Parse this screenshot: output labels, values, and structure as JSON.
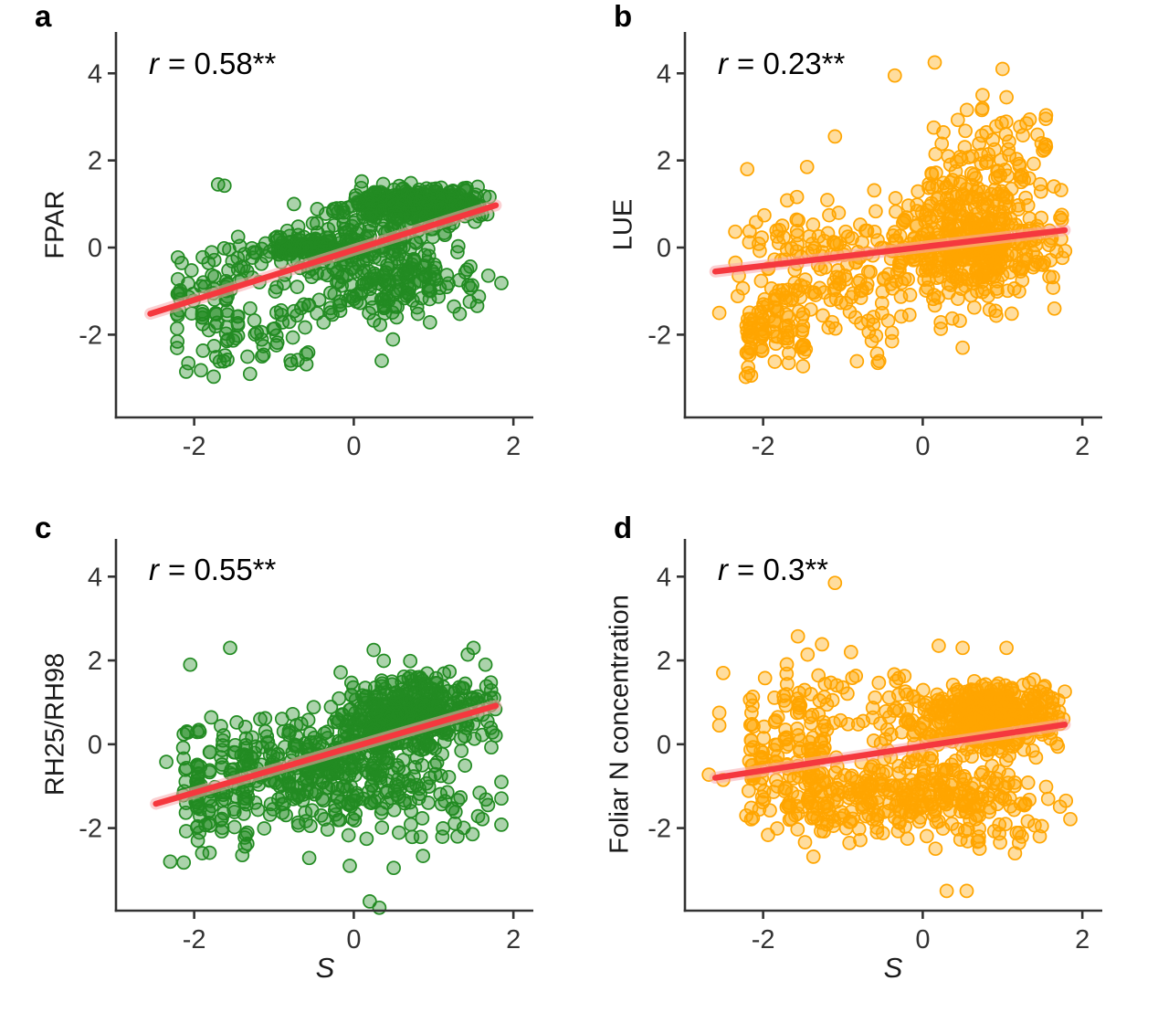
{
  "figure": {
    "background": "#ffffff",
    "axis_color": "#333333",
    "tick_label_color": "#333333",
    "regression_line_color": "#f5383e",
    "regression_band_color": "#f7a8ab",
    "green_point_color": "#228b22",
    "orange_point_color": "#ffa500"
  },
  "axes": {
    "x_label": "S",
    "x_ticks": [
      "-2",
      "0",
      "2"
    ],
    "x_tick_values": [
      -2,
      0,
      2
    ],
    "y_ticks": [
      "-2",
      "0",
      "2",
      "4"
    ],
    "y_tick_values": [
      -2,
      0,
      2,
      4
    ]
  },
  "chart_data": [
    {
      "panel": "a",
      "type": "scatter",
      "ylabel": "FPAR",
      "r_symbol": "r",
      "r_rest": "= 0.58**",
      "r_value": 0.58,
      "significance": "**",
      "point_color": "#228b22",
      "seed": 101,
      "n_points": 878,
      "xlim": [
        -2.98,
        2.25
      ],
      "ylim": [
        -3.9,
        4.95
      ],
      "regression_line": {
        "x1": -2.55,
        "y1": -1.52,
        "x2": 1.78,
        "y2": 0.97
      },
      "clusters": [
        {
          "n": 300,
          "cx": 0.85,
          "cy": 1.02,
          "sx": 0.4,
          "sy": 0.2,
          "clipx": [
            -0.3,
            1.78
          ],
          "clipy": [
            0.45,
            1.6
          ]
        },
        {
          "n": 90,
          "cx": 0.35,
          "cy": 0.55,
          "sx": 0.5,
          "sy": 0.35,
          "clipx": [
            -0.9,
            1.6
          ]
        },
        {
          "n": 120,
          "cx": -0.55,
          "cy": 0.0,
          "sx": 0.4,
          "sy": 0.14,
          "clipx": [
            -1.45,
            0.4
          ]
        },
        {
          "n": 200,
          "cx": 0.45,
          "cy": -0.7,
          "sx": 0.5,
          "sy": 0.55,
          "clipy": [
            -2.2,
            0.2
          ]
        },
        {
          "n": 80,
          "cx": -1.85,
          "cy": -1.2,
          "sx": 0.3,
          "sy": 0.85,
          "clipx": [
            -2.6,
            -1.35
          ],
          "clipy": [
            -3.0,
            0.3
          ],
          "columns": [
            -2.2,
            -2.05,
            -1.9,
            -1.75,
            -1.6,
            -1.45
          ]
        },
        {
          "n": 50,
          "cx": -1.0,
          "cy": -1.5,
          "sx": 0.45,
          "sy": 0.7,
          "clipy": [
            -2.9,
            -0.3
          ]
        },
        {
          "n": 30,
          "cx": -0.2,
          "cy": -0.15,
          "sx": 0.25,
          "sy": 0.3
        }
      ],
      "outliers": [
        [
          -1.7,
          1.45
        ],
        [
          -1.62,
          1.42
        ],
        [
          0.1,
          1.52
        ],
        [
          -0.75,
          1.0
        ],
        [
          0.35,
          -2.6
        ],
        [
          -1.15,
          -2.5
        ],
        [
          -1.3,
          -2.9
        ],
        [
          -2.1,
          -2.85
        ]
      ]
    },
    {
      "panel": "b",
      "type": "scatter",
      "ylabel": "LUE",
      "r_symbol": "r",
      "r_rest": "= 0.23**",
      "r_value": 0.23,
      "significance": "**",
      "point_color": "#ffa500",
      "seed": 202,
      "n_points": 792,
      "xlim": [
        -2.98,
        2.25
      ],
      "ylim": [
        -3.9,
        4.95
      ],
      "regression_line": {
        "x1": -2.6,
        "y1": -0.55,
        "x2": 1.78,
        "y2": 0.4
      },
      "clusters": [
        {
          "n": 350,
          "cx": 0.55,
          "cy": -0.05,
          "sx": 0.55,
          "sy": 0.5,
          "clipx": [
            -0.4,
            1.8
          ]
        },
        {
          "n": 130,
          "cx": 0.75,
          "cy": 1.1,
          "sx": 0.45,
          "sy": 0.55,
          "clipx": [
            -0.3,
            1.75
          ]
        },
        {
          "n": 150,
          "cx": -1.2,
          "cy": -0.35,
          "sx": 0.6,
          "sy": 0.7,
          "clipx": [
            -2.65,
            -0.2
          ]
        },
        {
          "n": 60,
          "cx": -1.85,
          "cy": -1.8,
          "sx": 0.3,
          "sy": 0.5,
          "clipy": [
            -2.75,
            -0.8
          ],
          "columns": [
            -2.0,
            -1.85,
            -1.7,
            -1.5
          ]
        },
        {
          "n": 25,
          "cx": -2.17,
          "cy": -2.1,
          "sx": 0.04,
          "sy": 0.4,
          "columns": [
            -2.17
          ]
        },
        {
          "n": 40,
          "cx": 0.9,
          "cy": 2.6,
          "sx": 0.45,
          "sy": 0.5,
          "clipx": [
            -0.1,
            1.7
          ]
        },
        {
          "n": 25,
          "cx": -0.5,
          "cy": -1.9,
          "sx": 0.5,
          "sy": 0.4
        }
      ],
      "outliers": [
        [
          0.15,
          4.25
        ],
        [
          -0.35,
          3.95
        ],
        [
          1.0,
          4.1
        ],
        [
          1.05,
          3.45
        ],
        [
          0.75,
          3.5
        ],
        [
          1.3,
          2.85
        ],
        [
          -1.1,
          2.55
        ],
        [
          -1.45,
          1.85
        ],
        [
          -2.2,
          1.8
        ],
        [
          -2.55,
          -1.5
        ],
        [
          1.65,
          -1.4
        ],
        [
          0.5,
          -2.3
        ]
      ]
    },
    {
      "panel": "c",
      "type": "scatter",
      "ylabel": "RH25/RH98",
      "r_symbol": "r",
      "r_rest": "= 0.55**",
      "r_value": 0.55,
      "significance": "**",
      "point_color": "#228b22",
      "seed": 303,
      "n_points": 912,
      "xlim": [
        -2.98,
        2.25
      ],
      "ylim": [
        -3.97,
        4.9
      ],
      "regression_line": {
        "x1": -2.48,
        "y1": -1.42,
        "x2": 1.78,
        "y2": 0.92
      },
      "clusters": [
        {
          "n": 380,
          "cx": 0.8,
          "cy": 0.72,
          "sx": 0.5,
          "sy": 0.42,
          "clipx": [
            -0.3,
            1.8
          ]
        },
        {
          "n": 240,
          "cx": -0.5,
          "cy": -0.5,
          "sx": 0.6,
          "sy": 0.55
        },
        {
          "n": 110,
          "cx": -1.75,
          "cy": -1.1,
          "sx": 0.3,
          "sy": 0.85,
          "clipx": [
            -2.55,
            -1.3
          ],
          "clipy": [
            -3.1,
            0.8
          ],
          "columns": [
            -2.1,
            -1.95,
            -1.8,
            -1.65,
            -1.5,
            -1.35
          ]
        },
        {
          "n": 110,
          "cx": 0.3,
          "cy": -1.3,
          "sx": 0.7,
          "sy": 0.5
        },
        {
          "n": 60,
          "cx": 0.1,
          "cy": 0.1,
          "sx": 0.5,
          "sy": 0.4
        }
      ],
      "outliers": [
        [
          -1.55,
          2.3
        ],
        [
          0.25,
          2.25
        ],
        [
          1.5,
          2.3
        ],
        [
          -2.05,
          1.9
        ],
        [
          1.65,
          1.9
        ],
        [
          0.2,
          -3.75
        ],
        [
          0.32,
          -3.9
        ],
        [
          0.5,
          -2.95
        ],
        [
          -0.05,
          -2.9
        ],
        [
          1.3,
          -2.2
        ],
        [
          -2.3,
          -2.8
        ],
        [
          -1.9,
          -2.6
        ]
      ]
    },
    {
      "panel": "d",
      "type": "scatter",
      "ylabel": "Foliar N concentration",
      "r_symbol": "r",
      "r_rest": "= 0.3**",
      "r_value": 0.3,
      "significance": "**",
      "point_color": "#ffa500",
      "seed": 404,
      "n_points": 962,
      "xlim": [
        -2.98,
        2.25
      ],
      "ylim": [
        -3.97,
        4.9
      ],
      "regression_line": {
        "x1": -2.6,
        "y1": -0.8,
        "x2": 1.78,
        "y2": 0.47
      },
      "clusters": [
        {
          "n": 400,
          "cx": 0.85,
          "cy": 0.68,
          "sx": 0.48,
          "sy": 0.42,
          "clipx": [
            -0.25,
            1.8
          ],
          "clipy": [
            -0.6,
            1.55
          ]
        },
        {
          "n": 230,
          "cx": 0.05,
          "cy": -1.15,
          "sx": 0.72,
          "sy": 0.5,
          "clipy": [
            -2.45,
            -0.1
          ]
        },
        {
          "n": 140,
          "cx": -1.75,
          "cy": -0.3,
          "sx": 0.38,
          "sy": 0.9,
          "clipx": [
            -2.6,
            -1.2
          ],
          "columns": [
            -2.15,
            -2.0,
            -1.85,
            -1.7,
            -1.55,
            -1.4,
            -1.25
          ]
        },
        {
          "n": 90,
          "cx": -1.1,
          "cy": -1.4,
          "sx": 0.5,
          "sy": 0.5
        },
        {
          "n": 60,
          "cx": -0.6,
          "cy": 0.6,
          "sx": 0.6,
          "sy": 0.7,
          "clipy": [
            -0.4,
            2.3
          ]
        },
        {
          "n": 30,
          "cx": 0.9,
          "cy": -1.9,
          "sx": 0.45,
          "sy": 0.35
        }
      ],
      "outliers": [
        [
          -1.1,
          3.85
        ],
        [
          0.3,
          -3.5
        ],
        [
          0.55,
          -3.5
        ],
        [
          -2.5,
          1.7
        ],
        [
          -2.55,
          0.75
        ],
        [
          -2.55,
          0.45
        ],
        [
          0.2,
          2.35
        ],
        [
          0.5,
          2.3
        ],
        [
          -0.9,
          2.2
        ],
        [
          1.05,
          2.3
        ],
        [
          -2.5,
          -0.85
        ],
        [
          1.7,
          1.05
        ]
      ]
    }
  ]
}
